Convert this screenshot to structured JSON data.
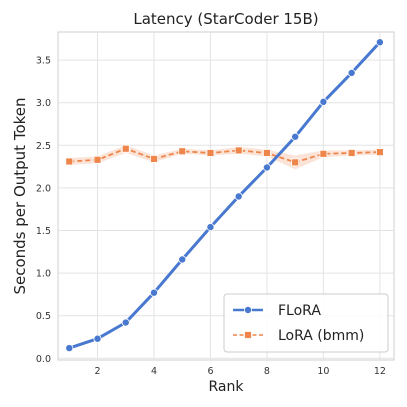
{
  "chart_data": {
    "type": "line",
    "title": "Latency (StarCoder 15B)",
    "xlabel": "Rank",
    "ylabel": "Seconds per Output Token",
    "xlim": [
      0.6,
      12.5
    ],
    "ylim": [
      -0.02,
      3.83
    ],
    "xticks": [
      2,
      4,
      6,
      8,
      10,
      12
    ],
    "yticks": [
      0.0,
      0.5,
      1.0,
      1.5,
      2.0,
      2.5,
      3.0,
      3.5
    ],
    "ytick_labels": [
      "0.0",
      "0.5",
      "1.0",
      "1.5",
      "2.0",
      "2.5",
      "3.0",
      "3.5"
    ],
    "x": [
      1,
      2,
      3,
      4,
      5,
      6,
      7,
      8,
      9,
      10,
      11,
      12
    ],
    "grid": true,
    "legend_position": "bottom-right",
    "series": [
      {
        "name": "FLoRA",
        "color": "#4878cf",
        "marker": "circle",
        "style": "solid",
        "values": [
          0.12,
          0.23,
          0.42,
          0.77,
          1.16,
          1.54,
          1.9,
          2.24,
          2.6,
          3.01,
          3.35,
          3.71
        ]
      },
      {
        "name": "LoRA (bmm)",
        "color": "#ee854a",
        "marker": "square",
        "style": "dashed",
        "values": [
          2.31,
          2.33,
          2.46,
          2.34,
          2.43,
          2.41,
          2.44,
          2.41,
          2.3,
          2.4,
          2.41,
          2.42
        ],
        "ci_low": [
          2.27,
          2.29,
          2.41,
          2.3,
          2.4,
          2.38,
          2.4,
          2.37,
          2.22,
          2.36,
          2.38,
          2.39
        ],
        "ci_high": [
          2.35,
          2.37,
          2.5,
          2.38,
          2.46,
          2.44,
          2.48,
          2.45,
          2.38,
          2.44,
          2.44,
          2.45
        ]
      }
    ]
  }
}
